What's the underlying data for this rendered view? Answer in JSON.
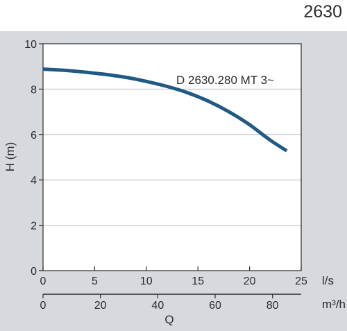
{
  "model_number": "2630",
  "colors": {
    "panel_background": "#d6dadf",
    "plot_background": "#ffffff",
    "curve": "#1f5a84",
    "grid": "#b7bcc2",
    "axis_text": "#2b2b2b"
  },
  "chart_data": {
    "type": "line",
    "title": "",
    "xlabel": "Q",
    "ylabel": "H (m)",
    "x_unit": "l/s",
    "x2_unit": "m³/h",
    "xlim": [
      0,
      25
    ],
    "ylim": [
      0,
      10
    ],
    "x2lim": [
      0,
      90
    ],
    "x_ticks": [
      "0",
      "5",
      "10",
      "15",
      "20",
      "25"
    ],
    "x2_ticks": [
      "0",
      "20",
      "40",
      "60",
      "80"
    ],
    "y_ticks": [
      "0",
      "2",
      "4",
      "6",
      "8",
      "10"
    ],
    "grid": "horizontal",
    "series": [
      {
        "name": "D 2630.280 MT 3~",
        "x": [
          0,
          2,
          4,
          6,
          8,
          10,
          12,
          14,
          16,
          18,
          20,
          22,
          23.6
        ],
        "y": [
          8.88,
          8.83,
          8.75,
          8.65,
          8.52,
          8.34,
          8.12,
          7.84,
          7.47,
          7.0,
          6.43,
          5.75,
          5.28
        ]
      }
    ]
  }
}
